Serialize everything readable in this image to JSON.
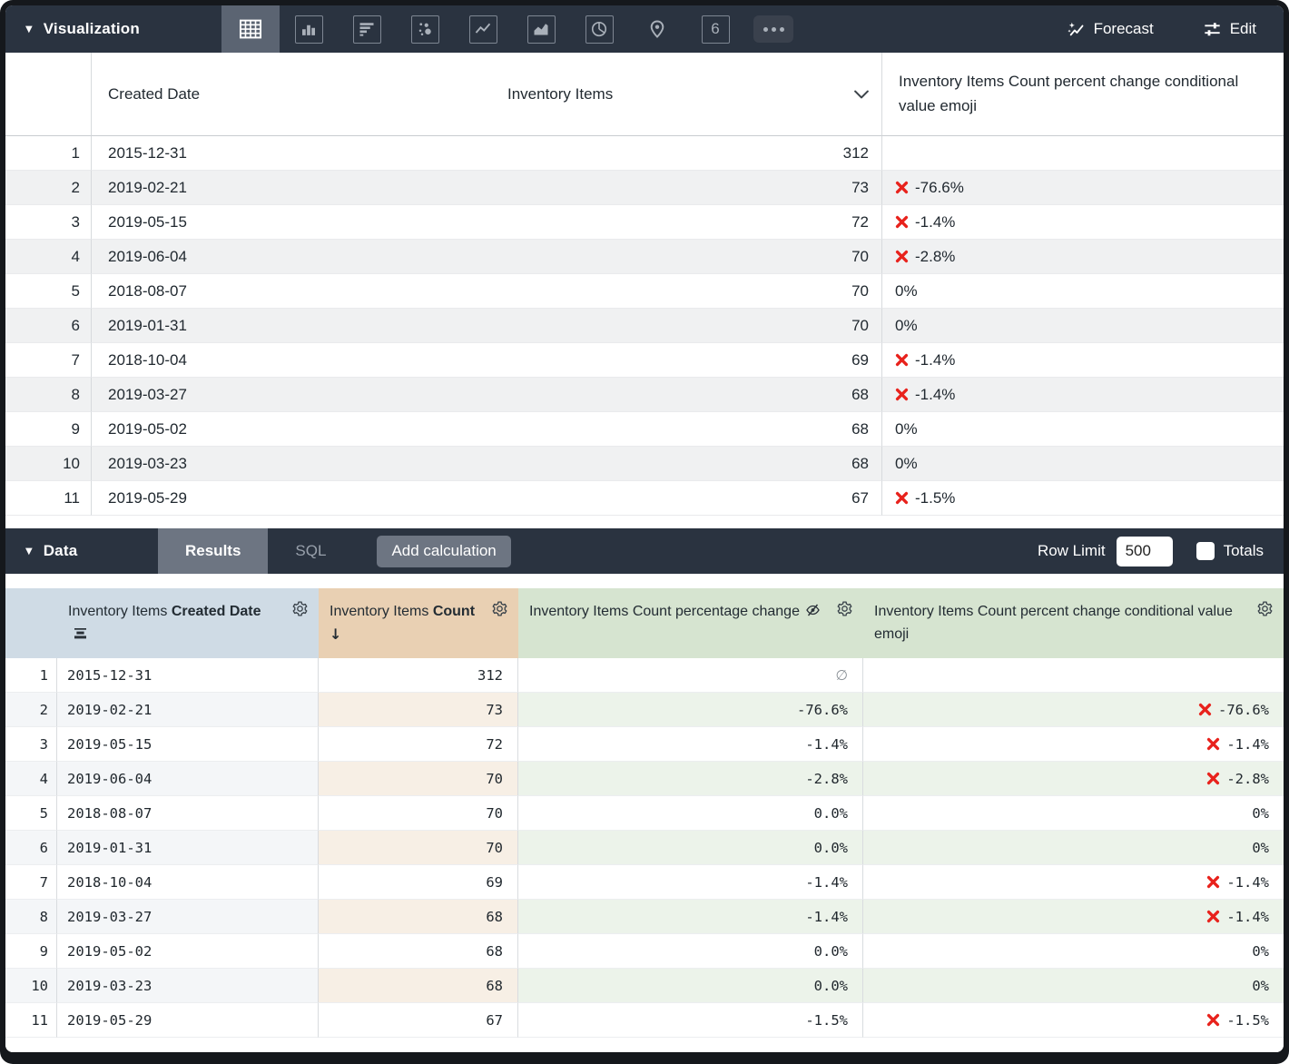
{
  "toolbar": {
    "section_label": "Visualization",
    "viz_types": [
      {
        "name": "table",
        "selected": true
      },
      {
        "name": "bar",
        "selected": false
      },
      {
        "name": "horizontal-bar",
        "selected": false
      },
      {
        "name": "scatter",
        "selected": false
      },
      {
        "name": "line",
        "selected": false
      },
      {
        "name": "area",
        "selected": false
      },
      {
        "name": "pie",
        "selected": false
      },
      {
        "name": "map",
        "selected": false
      },
      {
        "name": "single-value",
        "selected": false
      },
      {
        "name": "more-options",
        "selected": false
      }
    ],
    "single_value_glyph": "6",
    "forecast_label": "Forecast",
    "edit_label": "Edit"
  },
  "viz_table": {
    "columns": [
      "Created Date",
      "Inventory Items",
      "Inventory Items Count percent change conditional value emoji"
    ],
    "rows": [
      {
        "num": 1,
        "date": "2015-12-31",
        "count": "312",
        "emoji": "",
        "emoji_x": false
      },
      {
        "num": 2,
        "date": "2019-02-21",
        "count": "73",
        "emoji": "-76.6%",
        "emoji_x": true
      },
      {
        "num": 3,
        "date": "2019-05-15",
        "count": "72",
        "emoji": "-1.4%",
        "emoji_x": true
      },
      {
        "num": 4,
        "date": "2019-06-04",
        "count": "70",
        "emoji": "-2.8%",
        "emoji_x": true
      },
      {
        "num": 5,
        "date": "2018-08-07",
        "count": "70",
        "emoji": "0%",
        "emoji_x": false
      },
      {
        "num": 6,
        "date": "2019-01-31",
        "count": "70",
        "emoji": "0%",
        "emoji_x": false
      },
      {
        "num": 7,
        "date": "2018-10-04",
        "count": "69",
        "emoji": "-1.4%",
        "emoji_x": true
      },
      {
        "num": 8,
        "date": "2019-03-27",
        "count": "68",
        "emoji": "-1.4%",
        "emoji_x": true
      },
      {
        "num": 9,
        "date": "2019-05-02",
        "count": "68",
        "emoji": "0%",
        "emoji_x": false
      },
      {
        "num": 10,
        "date": "2019-03-23",
        "count": "68",
        "emoji": "0%",
        "emoji_x": false
      },
      {
        "num": 11,
        "date": "2019-05-29",
        "count": "67",
        "emoji": "-1.5%",
        "emoji_x": true
      }
    ]
  },
  "data_bar": {
    "section_label": "Data",
    "tabs": [
      {
        "label": "Results",
        "selected": true
      },
      {
        "label": "SQL",
        "selected": false
      }
    ],
    "add_calculation_label": "Add calculation",
    "row_limit_label": "Row Limit",
    "row_limit_value": "500",
    "totals_label": "Totals",
    "totals_checked": false
  },
  "results_table": {
    "columns": [
      {
        "normal": "Inventory Items",
        "bold": "Created Date",
        "icon": "fill",
        "type": "dimension"
      },
      {
        "normal": "Inventory Items",
        "bold": "Count",
        "sort_indicator": "↓",
        "type": "measure"
      },
      {
        "label": "Inventory Items Count percentage change",
        "icon": "hidden-eye",
        "type": "table-calculation"
      },
      {
        "label": "Inventory Items Count percent change conditional value emoji",
        "type": "table-calculation"
      }
    ],
    "null_symbol": "∅",
    "rows": [
      {
        "num": 1,
        "date": "2015-12-31",
        "count": "312",
        "pct": "∅",
        "pct_null": true,
        "emoji": "",
        "emoji_x": false
      },
      {
        "num": 2,
        "date": "2019-02-21",
        "count": "73",
        "pct": "-76.6%",
        "pct_null": false,
        "emoji": "-76.6%",
        "emoji_x": true
      },
      {
        "num": 3,
        "date": "2019-05-15",
        "count": "72",
        "pct": "-1.4%",
        "pct_null": false,
        "emoji": "-1.4%",
        "emoji_x": true
      },
      {
        "num": 4,
        "date": "2019-06-04",
        "count": "70",
        "pct": "-2.8%",
        "pct_null": false,
        "emoji": "-2.8%",
        "emoji_x": true
      },
      {
        "num": 5,
        "date": "2018-08-07",
        "count": "70",
        "pct": "0.0%",
        "pct_null": false,
        "emoji": "0%",
        "emoji_x": false
      },
      {
        "num": 6,
        "date": "2019-01-31",
        "count": "70",
        "pct": "0.0%",
        "pct_null": false,
        "emoji": "0%",
        "emoji_x": false
      },
      {
        "num": 7,
        "date": "2018-10-04",
        "count": "69",
        "pct": "-1.4%",
        "pct_null": false,
        "emoji": "-1.4%",
        "emoji_x": true
      },
      {
        "num": 8,
        "date": "2019-03-27",
        "count": "68",
        "pct": "-1.4%",
        "pct_null": false,
        "emoji": "-1.4%",
        "emoji_x": true
      },
      {
        "num": 9,
        "date": "2019-05-02",
        "count": "68",
        "pct": "0.0%",
        "pct_null": false,
        "emoji": "0%",
        "emoji_x": false
      },
      {
        "num": 10,
        "date": "2019-03-23",
        "count": "68",
        "pct": "0.0%",
        "pct_null": false,
        "emoji": "0%",
        "emoji_x": false
      },
      {
        "num": 11,
        "date": "2019-05-29",
        "count": "67",
        "pct": "-1.5%",
        "pct_null": false,
        "emoji": "-1.5%",
        "emoji_x": true
      }
    ]
  },
  "colors": {
    "toolbar_bg": "#2a3340",
    "selected_tile_bg": "#5b6472",
    "dimension_header": "#cfdbe5",
    "measure_header": "#e9d0b3",
    "calc_header": "#d6e4d0",
    "cross_mark_red": "#e8221c"
  }
}
